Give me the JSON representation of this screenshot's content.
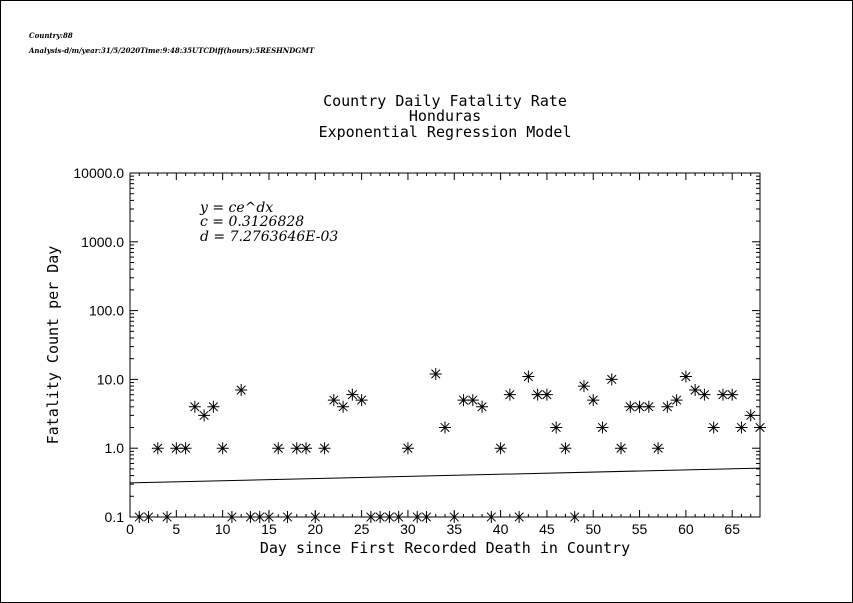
{
  "header": {
    "line1": "Country:88",
    "line2": "Analysis-d/m/year:31/5/2020Time:9:48:35UTCDiff(hours):5RESHNDGMT"
  },
  "chart_data": {
    "type": "scatter",
    "title_lines": [
      "Country Daily Fatality Rate",
      "Honduras",
      "Exponential Regression Model"
    ],
    "xlabel": "Day since First Recorded Death in Country",
    "ylabel": "Fatality Count per Day",
    "xlim": [
      0,
      68
    ],
    "ylim": [
      0.1,
      10000
    ],
    "yscale": "log",
    "xticks": [
      0,
      5,
      10,
      15,
      20,
      25,
      30,
      35,
      40,
      45,
      50,
      55,
      60,
      65
    ],
    "yticks": [
      0.1,
      1,
      10,
      100,
      1000,
      10000
    ],
    "ytick_labels": [
      "0.1",
      "1.0",
      "10.0",
      "100.0",
      "1000.0",
      "10000.0"
    ],
    "annotation": {
      "equation": "y = ce^dx",
      "c_label": "c = 0.3126828",
      "d_label": "d = 7.2763646E-03"
    },
    "model": {
      "c": 0.3126828,
      "d": 0.0072763646
    },
    "series": [
      {
        "marker": "asterisk",
        "x": [
          1,
          2,
          3,
          4,
          5,
          6,
          7,
          8,
          9,
          10,
          11,
          12,
          13,
          14,
          15,
          16,
          17,
          18,
          19,
          20,
          21,
          22,
          23,
          24,
          25,
          26,
          27,
          28,
          29,
          30,
          31,
          32,
          33,
          34,
          35,
          36,
          37,
          38,
          39,
          40,
          41,
          42,
          43,
          44,
          45,
          46,
          47,
          48,
          49,
          50,
          51,
          52,
          53,
          54,
          55,
          56,
          57,
          58,
          59,
          60,
          61,
          62,
          63,
          64,
          65,
          66,
          67,
          68
        ],
        "y": [
          0.1,
          0.1,
          1,
          0.1,
          1,
          1,
          4,
          3,
          4,
          1,
          0.1,
          7,
          0.1,
          0.1,
          0.1,
          1,
          0.1,
          1,
          1,
          0.1,
          1,
          5,
          4,
          6,
          5,
          0.1,
          0.1,
          0.1,
          0.1,
          1,
          0.1,
          0.1,
          12,
          2,
          0.1,
          5,
          5,
          4,
          0.1,
          1,
          6,
          0.1,
          11,
          6,
          6,
          2,
          1,
          0.1,
          8,
          5,
          2,
          10,
          1,
          4,
          4,
          4,
          1,
          4,
          5,
          11,
          7,
          6,
          2,
          6,
          6,
          2,
          3,
          2
        ]
      }
    ]
  }
}
